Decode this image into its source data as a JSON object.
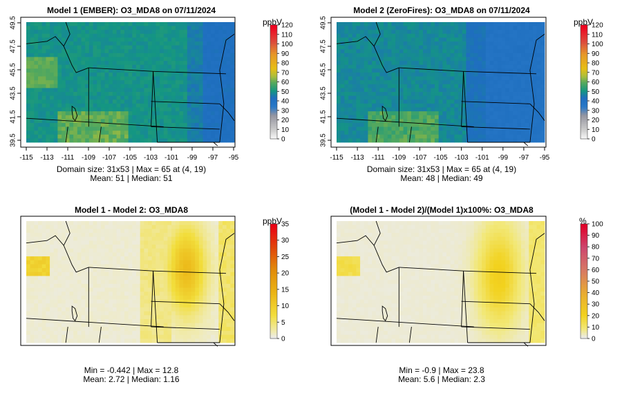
{
  "panels": [
    {
      "title": "Model 1 (EMBER): O3_MDA8 on 07/11/2024",
      "stats_line1": "Domain size: 31x53 | Max = 65 at (4, 19)",
      "stats_line2": "Mean: 51 |  Median: 51",
      "unit": "ppbV",
      "scale_ticks": [
        "0",
        "10",
        "20",
        "30",
        "40",
        "50",
        "60",
        "70",
        "80",
        "90",
        "100",
        "110",
        "120"
      ],
      "field": "abs1"
    },
    {
      "title": "Model 2 (ZeroFires): O3_MDA8 on 07/11/2024",
      "stats_line1": "Domain size: 31x53 | Max = 65 at (4, 19)",
      "stats_line2": "Mean: 48 |  Median: 49",
      "unit": "ppbV",
      "scale_ticks": [
        "0",
        "10",
        "20",
        "30",
        "40",
        "50",
        "60",
        "70",
        "80",
        "90",
        "100",
        "110",
        "120"
      ],
      "field": "abs2"
    },
    {
      "title": "Model 1 - Model 2: O3_MDA8",
      "stats_line1": "Min = -0.442 | Max = 12.8",
      "stats_line2": "Mean: 2.72 |  Median: 1.16",
      "unit": "ppbV",
      "scale_ticks": [
        "0",
        "5",
        "10",
        "15",
        "20",
        "25",
        "30",
        "35"
      ],
      "field": "diff"
    },
    {
      "title": "(Model 1 - Model 2)/(Model 1)x100%: O3_MDA8",
      "stats_line1": "Min = -0.9 | Max = 23.8",
      "stats_line2": "Mean: 5.6 |  Median: 2.3",
      "unit": "%",
      "scale_ticks": [
        "0",
        "10",
        "20",
        "30",
        "40",
        "50",
        "60",
        "70",
        "80",
        "90",
        "100"
      ],
      "field": "pct"
    }
  ],
  "axes": {
    "x_ticks": [
      "-115",
      "-113",
      "-111",
      "-109",
      "-107",
      "-105",
      "-103",
      "-101",
      "-99",
      "-97",
      "-95"
    ],
    "y_ticks": [
      "39.5",
      "41.5",
      "43.5",
      "45.5",
      "47.5",
      "49.5"
    ]
  },
  "colors": {
    "map_border": "#000000",
    "state_lines": "#000000"
  }
}
